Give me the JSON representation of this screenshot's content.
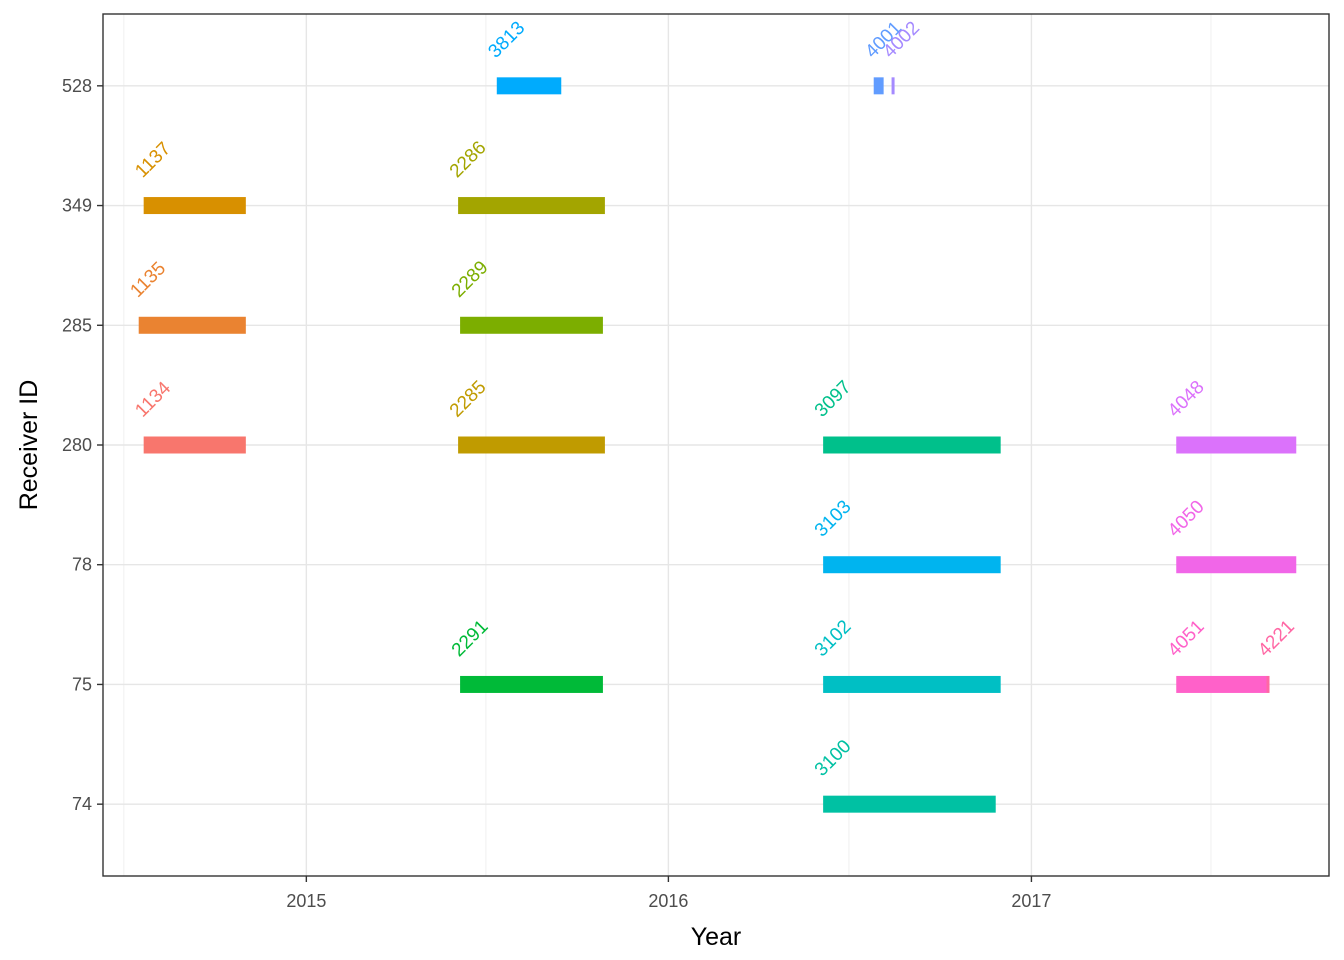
{
  "chart_data": {
    "type": "timeline",
    "xlabel": "Year",
    "ylabel": "Receiver ID",
    "x_ticks": [
      "2015",
      "2016",
      "2017"
    ],
    "y_categories": [
      "74",
      "75",
      "78",
      "280",
      "285",
      "349",
      "528"
    ],
    "xlim": [
      "2014-06-10",
      "2017-10-28"
    ],
    "grid": true,
    "legend": "none",
    "segments": [
      {
        "label": "1134",
        "receiver": "280",
        "start": "2014-07-21",
        "end": "2014-11-01",
        "color": "#F8766D"
      },
      {
        "label": "1135",
        "receiver": "285",
        "start": "2014-07-16",
        "end": "2014-11-01",
        "color": "#EA8331"
      },
      {
        "label": "1137",
        "receiver": "349",
        "start": "2014-07-21",
        "end": "2014-11-01",
        "color": "#D89000"
      },
      {
        "label": "2285",
        "receiver": "280",
        "start": "2015-06-03",
        "end": "2015-10-29",
        "color": "#C09B00"
      },
      {
        "label": "2286",
        "receiver": "349",
        "start": "2015-06-03",
        "end": "2015-10-29",
        "color": "#A3A500"
      },
      {
        "label": "2289",
        "receiver": "285",
        "start": "2015-06-05",
        "end": "2015-10-27",
        "color": "#7CAE00"
      },
      {
        "label": "2291",
        "receiver": "75",
        "start": "2015-06-05",
        "end": "2015-10-27",
        "color": "#00BA38"
      },
      {
        "label": "3097",
        "receiver": "280",
        "start": "2016-06-05",
        "end": "2016-12-01",
        "color": "#00C08B"
      },
      {
        "label": "3100",
        "receiver": "74",
        "start": "2016-06-05",
        "end": "2016-11-26",
        "color": "#00C1A3"
      },
      {
        "label": "3102",
        "receiver": "75",
        "start": "2016-06-05",
        "end": "2016-12-01",
        "color": "#00BFC4"
      },
      {
        "label": "3103",
        "receiver": "78",
        "start": "2016-06-05",
        "end": "2016-12-01",
        "color": "#00B4EF"
      },
      {
        "label": "3813",
        "receiver": "528",
        "start": "2015-07-12",
        "end": "2015-09-15",
        "color": "#00ABFD"
      },
      {
        "label": "4001",
        "receiver": "528",
        "start": "2016-07-26",
        "end": "2016-08-05",
        "color": "#619CFF"
      },
      {
        "label": "4002",
        "receiver": "528",
        "start": "2016-08-13",
        "end": "2016-08-15",
        "color": "#A58AFF"
      },
      {
        "label": "4048",
        "receiver": "280",
        "start": "2017-05-27",
        "end": "2017-09-25",
        "color": "#DB72FB"
      },
      {
        "label": "4050",
        "receiver": "78",
        "start": "2017-05-27",
        "end": "2017-09-25",
        "color": "#F166E8"
      },
      {
        "label": "4051",
        "receiver": "75",
        "start": "2017-05-27",
        "end": "2017-08-26",
        "color": "#FF61C9"
      },
      {
        "label": "4221",
        "receiver": "75",
        "start": "2017-08-26",
        "end": "2017-08-26",
        "color": "#FF67A4"
      }
    ]
  }
}
